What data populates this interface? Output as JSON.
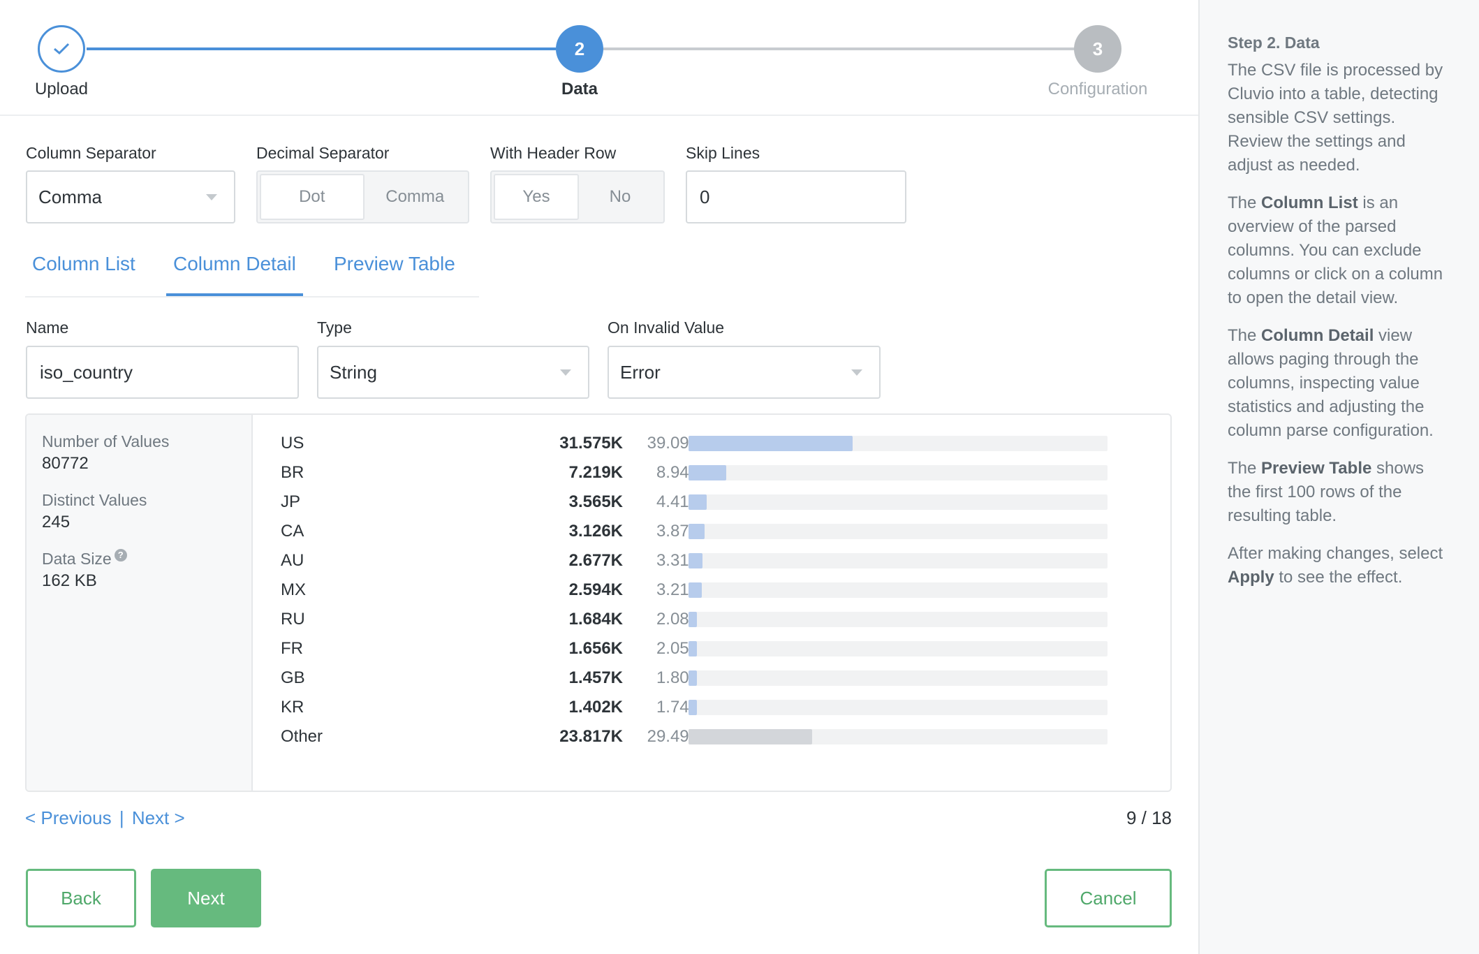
{
  "stepper": {
    "steps": [
      {
        "number": "",
        "label": "Upload",
        "state": "done"
      },
      {
        "number": "2",
        "label": "Data",
        "state": "active"
      },
      {
        "number": "3",
        "label": "Configuration",
        "state": "pending"
      }
    ]
  },
  "settings": {
    "column_separator": {
      "label": "Column Separator",
      "value": "Comma"
    },
    "decimal_separator": {
      "label": "Decimal Separator",
      "options": [
        "Dot",
        "Comma"
      ],
      "selected": "Dot"
    },
    "header_row": {
      "label": "With Header Row",
      "options": [
        "Yes",
        "No"
      ],
      "selected": "Yes"
    },
    "skip_lines": {
      "label": "Skip Lines",
      "value": "0"
    }
  },
  "tabs": [
    {
      "label": "Column List",
      "active": false
    },
    {
      "label": "Column Detail",
      "active": true
    },
    {
      "label": "Preview Table",
      "active": false
    }
  ],
  "column": {
    "name_label": "Name",
    "name_value": "iso_country",
    "type_label": "Type",
    "type_value": "String",
    "invalid_label": "On Invalid Value",
    "invalid_value": "Error"
  },
  "stats": {
    "num_values_label": "Number of Values",
    "num_values": "80772",
    "distinct_label": "Distinct Values",
    "distinct": "245",
    "size_label": "Data Size",
    "size_help": "?",
    "size": "162 KB"
  },
  "frequencies": [
    {
      "name": "US",
      "count": "31.575K",
      "pct": "39.09%",
      "fraction": 0.3909
    },
    {
      "name": "BR",
      "count": "7.219K",
      "pct": "8.94%",
      "fraction": 0.0894
    },
    {
      "name": "JP",
      "count": "3.565K",
      "pct": "4.41%",
      "fraction": 0.0441
    },
    {
      "name": "CA",
      "count": "3.126K",
      "pct": "3.87%",
      "fraction": 0.0387
    },
    {
      "name": "AU",
      "count": "2.677K",
      "pct": "3.31%",
      "fraction": 0.0331
    },
    {
      "name": "MX",
      "count": "2.594K",
      "pct": "3.21%",
      "fraction": 0.0321
    },
    {
      "name": "RU",
      "count": "1.684K",
      "pct": "2.08%",
      "fraction": 0.0208
    },
    {
      "name": "FR",
      "count": "1.656K",
      "pct": "2.05%",
      "fraction": 0.0205
    },
    {
      "name": "GB",
      "count": "1.457K",
      "pct": "1.80%",
      "fraction": 0.018
    },
    {
      "name": "KR",
      "count": "1.402K",
      "pct": "1.74%",
      "fraction": 0.0174
    },
    {
      "name": "Other",
      "count": "23.817K",
      "pct": "29.49%",
      "fraction": 0.2949,
      "other": true
    }
  ],
  "pager": {
    "previous": "< Previous",
    "separator": "|",
    "next": "Next >",
    "position": "9 / 18"
  },
  "buttons": {
    "back": "Back",
    "next": "Next",
    "cancel": "Cancel"
  },
  "help": {
    "title": "Step 2. Data",
    "p1": "The CSV file is processed by Cluvio into a table, detecting sensible CSV settings. Review the settings and adjust as needed.",
    "p2_bold": "Column List",
    "p2_pre": "The",
    "p2_post": "is an overview of the parsed columns. You can exclude columns or click on a column to open the detail view.",
    "p3_pre": "The",
    "p3_bold": "Column Detail",
    "p3_post": "view allows paging through the columns, inspecting value statistics and adjusting the column parse configuration.",
    "p4_pre": "The",
    "p4_bold": "Preview Table",
    "p4_post": "shows the first 100 rows of the resulting table.",
    "p5_pre": "After making changes, select",
    "p5_bold": "Apply",
    "p5_post": "to see the effect."
  },
  "colors": {
    "accent": "#4a90d9",
    "green": "#66ba7e",
    "bar": "#b7ccec",
    "bar_other": "#d3d6da"
  }
}
